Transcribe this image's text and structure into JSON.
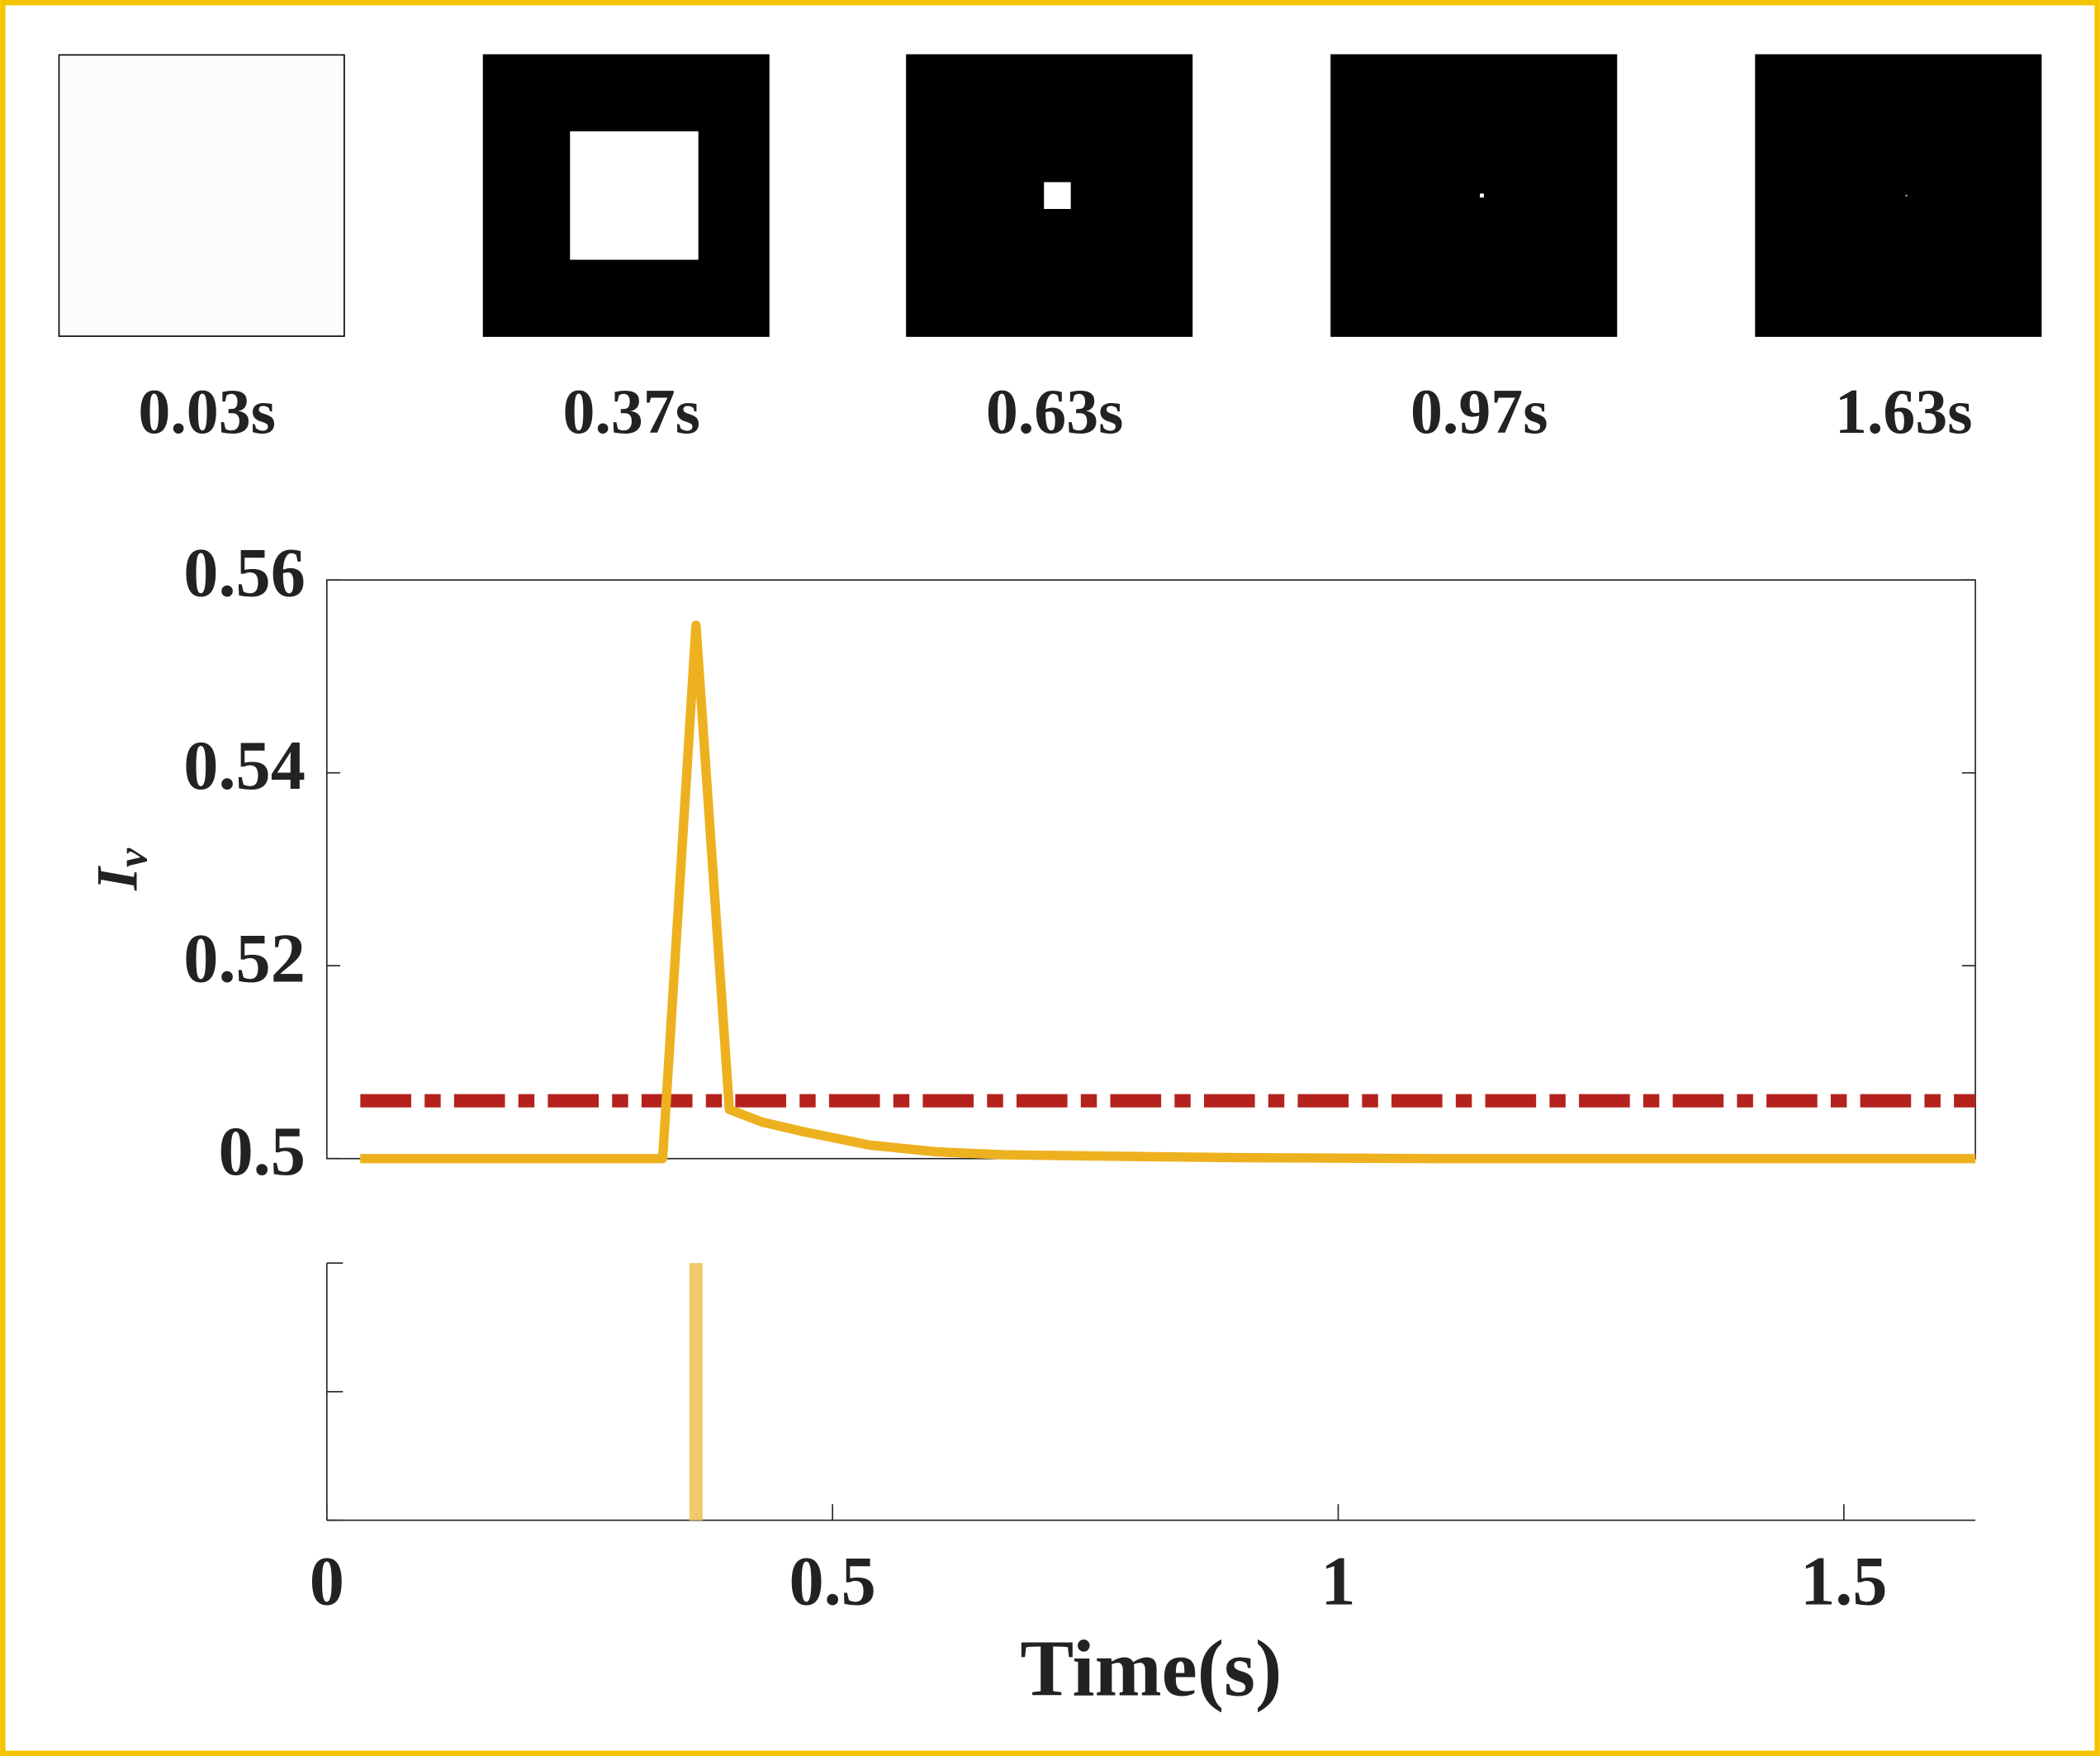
{
  "frames": [
    {
      "label": "0.03s"
    },
    {
      "label": "0.37s"
    },
    {
      "label": "0.63s"
    },
    {
      "label": "0.97s"
    },
    {
      "label": "1.63s"
    }
  ],
  "chart_data": [
    {
      "type": "line",
      "ylabel": "I",
      "ylabel_subscript": "v",
      "x": [
        0.033,
        0.332,
        0.365,
        0.398,
        0.43,
        0.471,
        0.537,
        0.603,
        0.669,
        0.735,
        0.9,
        1.1,
        1.63
      ],
      "series": [
        {
          "color": "#EDB120",
          "values": [
            0.5,
            0.5,
            0.5553,
            0.5051,
            0.5038,
            0.5028,
            0.5014,
            0.5007,
            0.5004,
            0.5003,
            0.5001,
            0.5,
            0.5
          ]
        }
      ],
      "threshold": 0.506,
      "threshold_color": "#B5221E",
      "xlim": [
        0,
        1.63
      ],
      "ylim": [
        0.5,
        0.56
      ],
      "yticks": [
        0.5,
        0.52,
        0.54,
        0.56
      ]
    },
    {
      "type": "event",
      "xlabel": "Time(s)",
      "x": [
        0.365
      ],
      "color": "#F2C96A",
      "xlim": [
        0,
        1.63
      ],
      "xticks": [
        0,
        0.5,
        1,
        1.5
      ],
      "ylim": [
        0,
        1
      ],
      "yticks": [
        0,
        0.5,
        1
      ]
    }
  ]
}
